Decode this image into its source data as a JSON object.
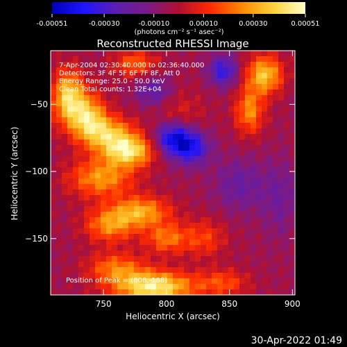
{
  "footer": {
    "timestamp": "30-Apr-2022 01:49"
  },
  "colorbar": {
    "ticks": [
      "-0.00051",
      "-0.00030",
      "-0.00010",
      "0.00010",
      "0.00030",
      "0.00051"
    ],
    "units_label": "(photons cm⁻² s⁻¹ asec⁻²)",
    "stops": [
      "#0000b4",
      "#1e14ff",
      "#5a1eb4",
      "#7a1a86",
      "#b01030",
      "#ff2a00",
      "#ff8a00",
      "#ffd23c",
      "#ffffc8"
    ]
  },
  "chart_data": {
    "type": "heatmap",
    "title": "Reconstructed RHESSI Image",
    "xlabel": "Heliocentric X (arcsec)",
    "ylabel": "Heliocentric Y (arcsec)",
    "xlim": [
      708,
      902
    ],
    "ylim": [
      -192,
      -10
    ],
    "x_ticks": [
      750,
      800,
      850,
      900
    ],
    "y_ticks": [
      -50,
      -100,
      -150
    ],
    "x_tick_labels": [
      "750",
      "800",
      "850",
      "900"
    ],
    "y_tick_labels": [
      "−50",
      "−100",
      "−150"
    ],
    "value_range": [
      -0.00051,
      0.00051
    ],
    "annotations": [
      "7-Apr-2004 02:30:40.000 to 02:36:40.000",
      "Detectors: 3F 4F 5F 6F 7F 8F, Att 0",
      "Energy Range: 25.0 - 50.0 keV",
      "Clean     Total counts: 1.32E+04"
    ],
    "peak_label": "Position of Peak = (808,-188)",
    "peak_position": [
      808,
      -188
    ],
    "sources": [
      {
        "x": 722,
        "y": -45,
        "value": 0.00044,
        "sx": 9,
        "sy": 14
      },
      {
        "x": 738,
        "y": -60,
        "value": 0.0004,
        "sx": 10,
        "sy": 12
      },
      {
        "x": 755,
        "y": -72,
        "value": 0.00035,
        "sx": 14,
        "sy": 9
      },
      {
        "x": 770,
        "y": -85,
        "value": 0.00045,
        "sx": 14,
        "sy": 8
      },
      {
        "x": 748,
        "y": -105,
        "value": 0.00032,
        "sx": 18,
        "sy": 10
      },
      {
        "x": 780,
        "y": -130,
        "value": 0.00034,
        "sx": 16,
        "sy": 8
      },
      {
        "x": 755,
        "y": -140,
        "value": 0.0003,
        "sx": 14,
        "sy": 9
      },
      {
        "x": 800,
        "y": -150,
        "value": 0.00026,
        "sx": 12,
        "sy": 8
      },
      {
        "x": 790,
        "y": -186,
        "value": 0.00051,
        "sx": 22,
        "sy": 8
      },
      {
        "x": 760,
        "y": -172,
        "value": 0.00026,
        "sx": 16,
        "sy": 8
      },
      {
        "x": 830,
        "y": -150,
        "value": 0.00018,
        "sx": 12,
        "sy": 10
      },
      {
        "x": 845,
        "y": -183,
        "value": 0.0002,
        "sx": 14,
        "sy": 7
      },
      {
        "x": 878,
        "y": -28,
        "value": 0.0004,
        "sx": 10,
        "sy": 10
      },
      {
        "x": 866,
        "y": -55,
        "value": 0.0003,
        "sx": 8,
        "sy": 12
      },
      {
        "x": 775,
        "y": -20,
        "value": 0.00024,
        "sx": 12,
        "sy": 7
      },
      {
        "x": 810,
        "y": -60,
        "value": 0.00012,
        "sx": 14,
        "sy": 14
      },
      {
        "x": 805,
        "y": -75,
        "value": -0.0004,
        "sx": 10,
        "sy": 9
      },
      {
        "x": 820,
        "y": -82,
        "value": -0.00034,
        "sx": 10,
        "sy": 9
      },
      {
        "x": 845,
        "y": -25,
        "value": -0.0003,
        "sx": 8,
        "sy": 8
      },
      {
        "x": 790,
        "y": -40,
        "value": -0.0002,
        "sx": 10,
        "sy": 8
      },
      {
        "x": 858,
        "y": -110,
        "value": -0.00015,
        "sx": 14,
        "sy": 14
      },
      {
        "x": 890,
        "y": -120,
        "value": -0.00012,
        "sx": 10,
        "sy": 20
      }
    ]
  }
}
